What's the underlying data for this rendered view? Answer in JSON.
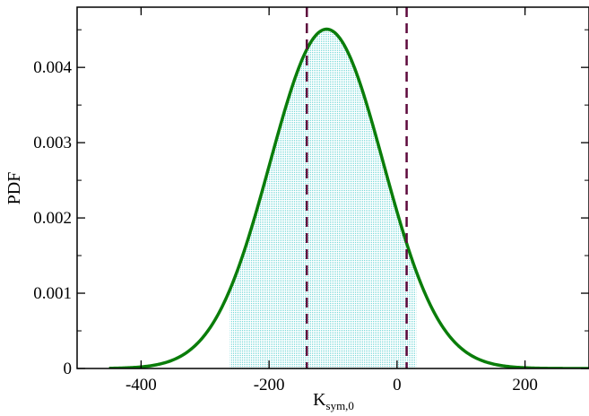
{
  "chart_data": {
    "type": "line",
    "title": "",
    "xlabel": "K",
    "xlabel_subscript": "sym,0",
    "ylabel": "PDF",
    "xlim": [
      -500,
      300
    ],
    "ylim": [
      0,
      0.0048
    ],
    "x_ticks": [
      -400,
      -200,
      0,
      200
    ],
    "x_tick_labels": [
      "-400",
      "-200",
      "0",
      "200"
    ],
    "y_ticks": [
      0,
      0.001,
      0.002,
      0.003,
      0.004
    ],
    "y_tick_labels": [
      "0",
      "0.001",
      "0.002",
      "0.003",
      "0.004"
    ],
    "grid": false,
    "legend": "none",
    "series": [
      {
        "distribution": "gaussian",
        "mean": -110,
        "std": 88.5,
        "x_range": [
          -450,
          300
        ],
        "color": "#0a7d0a"
      }
    ],
    "shaded_interval": {
      "x_range": [
        -261,
        30
      ],
      "color": "#6fd6d6"
    },
    "vertical_lines": [
      {
        "x": -141,
        "color": "#5e0a3d",
        "style": "dashed"
      },
      {
        "x": 15,
        "color": "#5e0a3d",
        "style": "dashed"
      }
    ]
  }
}
